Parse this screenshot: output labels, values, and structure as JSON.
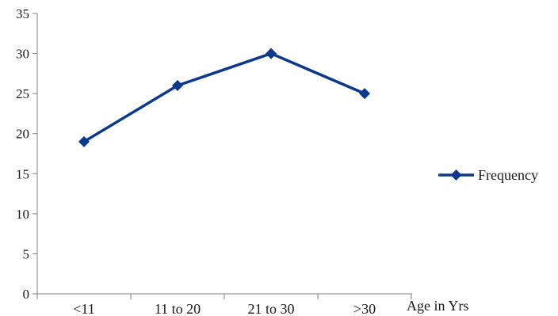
{
  "chart_data": {
    "type": "line",
    "categories": [
      "<11",
      "11 to 20",
      "21 to 30",
      ">30"
    ],
    "series": [
      {
        "name": "Frequency",
        "values": [
          19,
          26,
          30,
          25
        ],
        "color": "#0b3a8c"
      }
    ],
    "xlabel": "Age in Yrs",
    "ylabel": "",
    "ylim": [
      0,
      35
    ],
    "yticks": [
      0,
      5,
      10,
      15,
      20,
      25,
      30,
      35
    ],
    "grid": false,
    "legend": "right",
    "marker": "diamond"
  }
}
